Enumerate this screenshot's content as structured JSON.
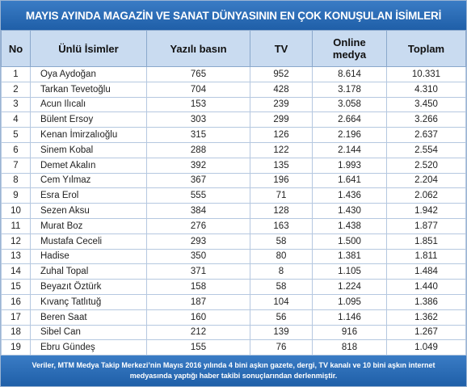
{
  "header": {
    "title": "MAYIS AYINDA MAGAZİN VE SANAT DÜNYASININ EN ÇOK KONUŞULAN İSİMLERİ"
  },
  "table": {
    "columns": [
      "No",
      "Ünlü İsimler",
      "Yazılı basın",
      "TV",
      "Online medya",
      "Toplam"
    ],
    "rows": [
      [
        "1",
        "Oya Aydoğan",
        "765",
        "952",
        "8.614",
        "10.331"
      ],
      [
        "2",
        "Tarkan Tevetoğlu",
        "704",
        "428",
        "3.178",
        "4.310"
      ],
      [
        "3",
        "Acun Ilıcalı",
        "153",
        "239",
        "3.058",
        "3.450"
      ],
      [
        "4",
        "Bülent Ersoy",
        "303",
        "299",
        "2.664",
        "3.266"
      ],
      [
        "5",
        "Kenan İmirzalıoğlu",
        "315",
        "126",
        "2.196",
        "2.637"
      ],
      [
        "6",
        "Sinem Kobal",
        "288",
        "122",
        "2.144",
        "2.554"
      ],
      [
        "7",
        "Demet Akalın",
        "392",
        "135",
        "1.993",
        "2.520"
      ],
      [
        "8",
        "Cem Yılmaz",
        "367",
        "196",
        "1.641",
        "2.204"
      ],
      [
        "9",
        "Esra Erol",
        "555",
        "71",
        "1.436",
        "2.062"
      ],
      [
        "10",
        "Sezen Aksu",
        "384",
        "128",
        "1.430",
        "1.942"
      ],
      [
        "11",
        "Murat Boz",
        "276",
        "163",
        "1.438",
        "1.877"
      ],
      [
        "12",
        "Mustafa Ceceli",
        "293",
        "58",
        "1.500",
        "1.851"
      ],
      [
        "13",
        "Hadise",
        "350",
        "80",
        "1.381",
        "1.811"
      ],
      [
        "14",
        "Zuhal Topal",
        "371",
        "8",
        "1.105",
        "1.484"
      ],
      [
        "15",
        "Beyazıt Öztürk",
        "158",
        "58",
        "1.224",
        "1.440"
      ],
      [
        "16",
        "Kıvanç Tatlıtuğ",
        "187",
        "104",
        "1.095",
        "1.386"
      ],
      [
        "17",
        "Beren Saat",
        "160",
        "56",
        "1.146",
        "1.362"
      ],
      [
        "18",
        "Sibel Can",
        "212",
        "139",
        "916",
        "1.267"
      ],
      [
        "19",
        "Ebru Gündeş",
        "155",
        "76",
        "818",
        "1.049"
      ]
    ]
  },
  "footer": {
    "note": "Veriler, MTM Medya Takip Merkezi’nin Mayıs 2016 yılında 4 bini aşkın gazete, dergi, TV kanalı ve 10 bini aşkın internet medyasında yaptığı haber takibi sonuçlarından derlenmiştir."
  }
}
